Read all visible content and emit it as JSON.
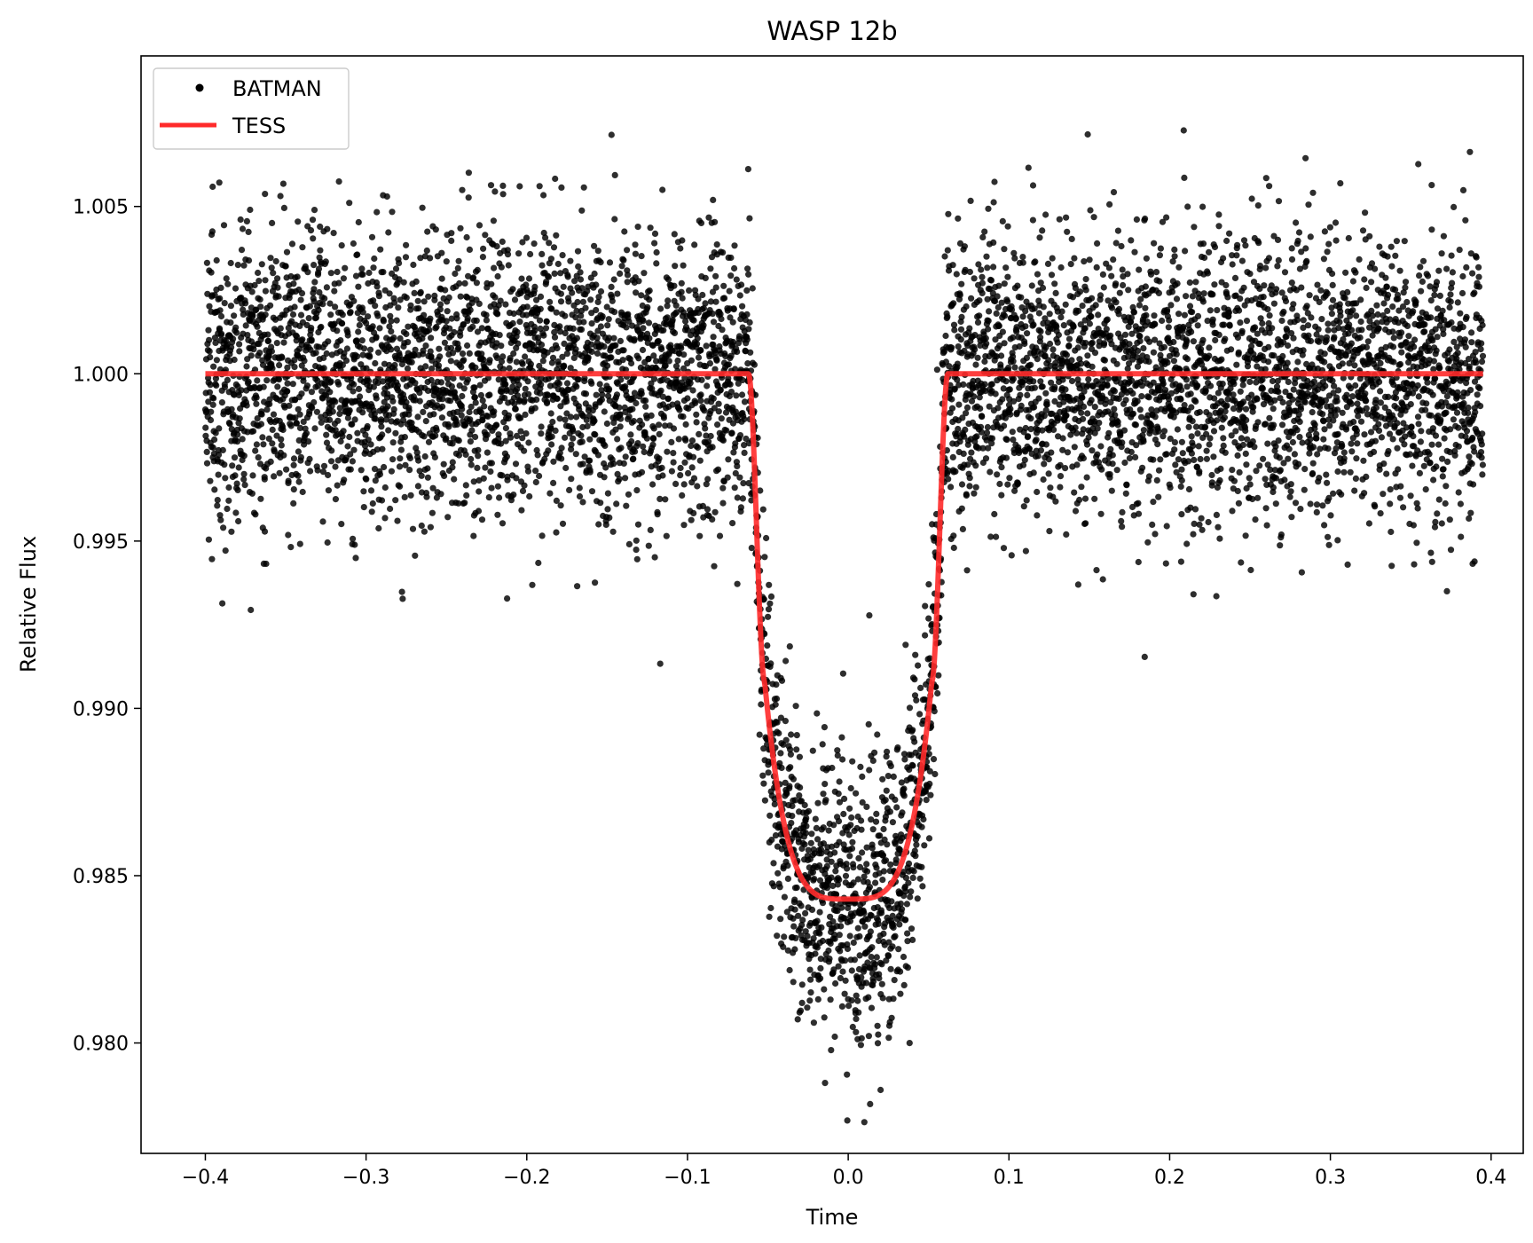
{
  "chart_data": {
    "type": "scatter",
    "title": "WASP 12b",
    "xlabel": "Time",
    "ylabel": "Relative Flux",
    "xlim": [
      -0.44,
      0.42
    ],
    "ylim": [
      0.9767,
      1.0095
    ],
    "x_ticks": [
      -0.4,
      -0.3,
      -0.2,
      -0.1,
      0.0,
      0.1,
      0.2,
      0.3,
      0.4
    ],
    "x_tick_labels": [
      "−0.4",
      "−0.3",
      "−0.2",
      "−0.1",
      "0.0",
      "0.1",
      "0.2",
      "0.3",
      "0.4"
    ],
    "y_ticks": [
      0.98,
      0.985,
      0.99,
      0.995,
      1.0,
      1.005
    ],
    "y_tick_labels": [
      "0.980",
      "0.985",
      "0.990",
      "0.995",
      "1.000",
      "1.005"
    ],
    "grid": false,
    "legend": {
      "position": "upper-left",
      "entries": [
        "BATMAN",
        "TESS"
      ]
    },
    "series": [
      {
        "name": "BATMAN",
        "kind": "points",
        "color": "#000000",
        "x_range": [
          -0.4,
          0.395
        ],
        "baseline": 1.0,
        "scatter_sigma": 0.0021,
        "n_points": 7000,
        "points": "generated in the script from a transit model with Gaussian scatter"
      },
      {
        "name": "TESS",
        "kind": "line",
        "color": "#ff2a2a",
        "model": {
          "baseline": 1.0,
          "ingress_start": -0.062,
          "full_start": -0.052,
          "full_end": 0.052,
          "egress_end": 0.062,
          "min_flux": 0.9843,
          "edge_flux": 0.9908
        }
      }
    ]
  }
}
